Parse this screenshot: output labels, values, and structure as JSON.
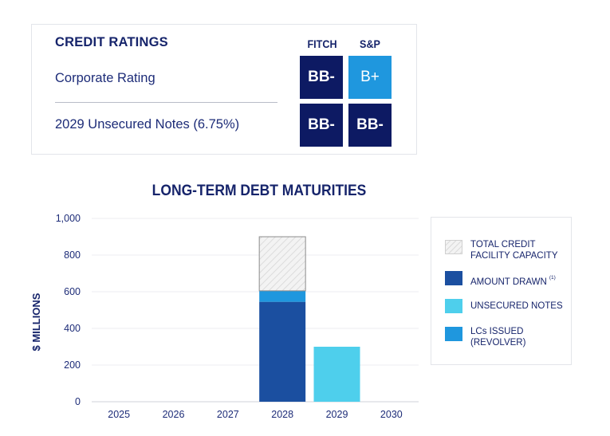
{
  "ratings": {
    "title": "CREDIT RATINGS",
    "agencies": [
      "FITCH",
      "S&P"
    ],
    "rows": [
      {
        "label": "Corporate Rating",
        "fitch": "BB-",
        "sp": "B+"
      },
      {
        "label": "2029 Unsecured Notes (6.75%)",
        "fitch": "BB-",
        "sp": "BB-"
      }
    ],
    "colors": {
      "navy": "#0d1a63",
      "light_blue": "#1f97de"
    }
  },
  "chart_data": {
    "type": "bar",
    "title": "LONG-TERM DEBT MATURITIES",
    "ylabel": "$ MILLIONS",
    "xlabel": "",
    "categories": [
      "2025",
      "2026",
      "2027",
      "2028",
      "2029",
      "2030"
    ],
    "ylim": [
      0,
      1000
    ],
    "yticks": [
      0,
      200,
      400,
      600,
      800,
      1000
    ],
    "ytick_labels": [
      "0",
      "200",
      "400",
      "600",
      "800",
      "1,000"
    ],
    "series": [
      {
        "name": "AMOUNT DRAWN",
        "superscript": "(1)",
        "color": "#1b4fa0",
        "stack": "revolver",
        "values": [
          0,
          0,
          0,
          545,
          0,
          0
        ]
      },
      {
        "name": "LCs ISSUED (REVOLVER)",
        "color": "#1f97de",
        "stack": "revolver",
        "values": [
          0,
          0,
          0,
          60,
          0,
          0
        ]
      },
      {
        "name": "TOTAL CREDIT FACILITY CAPACITY",
        "color": "#f2f2f2",
        "hatched": true,
        "stack": "revolver",
        "values": [
          0,
          0,
          0,
          295,
          0,
          0
        ]
      },
      {
        "name": "UNSECURED NOTES",
        "color": "#4ecfec",
        "stack": "notes",
        "values": [
          0,
          0,
          0,
          0,
          300,
          0
        ]
      }
    ],
    "legend": [
      {
        "label": "TOTAL CREDIT FACILITY CAPACITY",
        "label_lines": [
          "TOTAL CREDIT",
          "FACILITY CAPACITY"
        ],
        "color": "#f2f2f2",
        "hatched": true
      },
      {
        "label": "AMOUNT DRAWN",
        "label_lines": [
          "AMOUNT DRAWN"
        ],
        "superscript": "(1)",
        "color": "#1b4fa0"
      },
      {
        "label": "UNSECURED NOTES",
        "label_lines": [
          "UNSECURED NOTES"
        ],
        "color": "#4ecfec"
      },
      {
        "label": "LCs ISSUED (REVOLVER)",
        "label_lines": [
          "LCs ISSUED",
          "(REVOLVER)"
        ],
        "color": "#1f97de"
      }
    ],
    "grid": true,
    "legend_position": "right"
  }
}
